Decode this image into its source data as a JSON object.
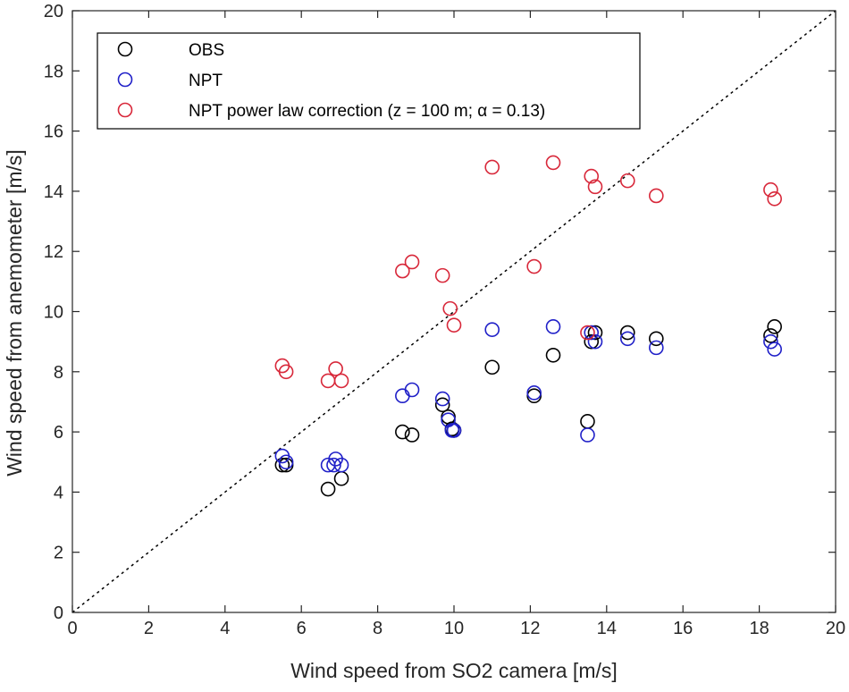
{
  "chart_data": {
    "type": "scatter",
    "title": "",
    "xlabel": "Wind speed from SO2 camera [m/s]",
    "ylabel": "Wind speed from anemometer [m/s]",
    "xlim": [
      0,
      20
    ],
    "ylim": [
      0,
      20
    ],
    "xticks": [
      "0",
      "2",
      "4",
      "6",
      "8",
      "10",
      "12",
      "14",
      "16",
      "18",
      "20"
    ],
    "yticks": [
      "0",
      "2",
      "4",
      "6",
      "8",
      "10",
      "12",
      "14",
      "16",
      "18",
      "20"
    ],
    "grid": false,
    "legend_position": "top-left",
    "reference_line": {
      "style": "dotted",
      "color": "#000000",
      "x": [
        0,
        20
      ],
      "y": [
        0,
        20
      ]
    },
    "series": [
      {
        "name": "OBS",
        "color": "#000000",
        "marker": "open-circle",
        "x": [
          5.5,
          5.6,
          6.7,
          7.05,
          8.65,
          8.9,
          9.7,
          9.85,
          9.95,
          10.0,
          11.0,
          12.1,
          12.6,
          13.5,
          13.6,
          13.7,
          14.55,
          15.3,
          18.3,
          18.4
        ],
        "y": [
          4.9,
          4.9,
          4.1,
          4.45,
          6.0,
          5.9,
          6.9,
          6.5,
          6.1,
          6.05,
          8.15,
          7.2,
          8.55,
          6.35,
          9.0,
          9.3,
          9.3,
          9.1,
          9.2,
          9.5
        ]
      },
      {
        "name": "NPT",
        "color": "#2020c8",
        "marker": "open-circle",
        "x": [
          5.5,
          5.6,
          6.7,
          6.85,
          6.9,
          7.05,
          8.65,
          8.9,
          9.7,
          9.85,
          9.95,
          10.0,
          11.0,
          12.1,
          12.6,
          13.5,
          13.6,
          13.7,
          14.55,
          15.3,
          18.3,
          18.4
        ],
        "y": [
          5.2,
          5.0,
          4.9,
          4.9,
          5.1,
          4.9,
          7.2,
          7.4,
          7.1,
          6.4,
          6.05,
          6.05,
          9.4,
          7.3,
          9.5,
          5.9,
          9.3,
          9.0,
          9.1,
          8.8,
          9.0,
          8.75
        ]
      },
      {
        "name": "NPT power law correction (z = 100 m; α = 0.13)",
        "color": "#d8283a",
        "marker": "open-circle",
        "x": [
          5.5,
          5.6,
          6.7,
          6.9,
          7.05,
          8.65,
          8.9,
          9.7,
          9.9,
          10.0,
          11.0,
          12.1,
          12.6,
          13.5,
          13.6,
          13.7,
          14.55,
          15.3,
          18.3,
          18.4
        ],
        "y": [
          8.2,
          8.0,
          7.7,
          8.1,
          7.7,
          11.35,
          11.65,
          11.2,
          10.1,
          9.55,
          14.8,
          11.5,
          14.95,
          9.3,
          14.5,
          14.15,
          14.35,
          13.85,
          14.05,
          13.75
        ]
      }
    ]
  }
}
